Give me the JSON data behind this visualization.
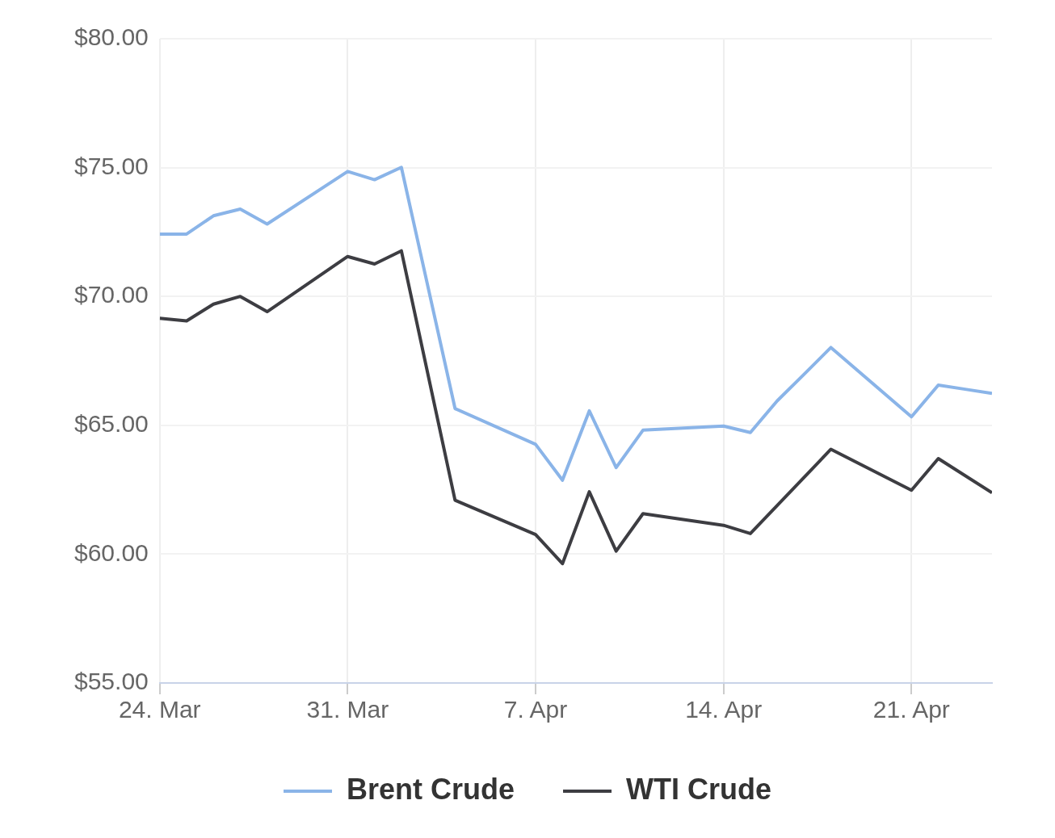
{
  "chart_data": {
    "type": "line",
    "x": [
      "--03-24",
      "--03-25",
      "--03-26",
      "--03-27",
      "--03-28",
      "--03-31",
      "--04-01",
      "--04-02",
      "--04-04",
      "--04-07",
      "--04-08",
      "--04-09",
      "--04-10",
      "--04-11",
      "--04-14",
      "--04-15",
      "--04-16",
      "--04-17",
      "--04-18",
      "--04-21",
      "--04-22",
      "--04-23",
      "--04-24"
    ],
    "series": [
      {
        "name": "Brent Crude",
        "color": "#8ab4e8",
        "values": [
          72.42,
          72.42,
          73.13,
          73.39,
          72.81,
          74.85,
          74.53,
          75.01,
          65.65,
          64.26,
          62.87,
          65.56,
          63.36,
          64.81,
          64.97,
          64.72,
          65.95,
          66.98,
          68.02,
          65.33,
          66.56,
          66.4,
          66.24
        ]
      },
      {
        "name": "WTI Crude",
        "color": "#3d3d42",
        "values": [
          69.15,
          69.05,
          69.7,
          70.0,
          69.41,
          71.55,
          71.26,
          71.77,
          62.09,
          60.76,
          59.63,
          62.42,
          60.12,
          61.57,
          61.12,
          60.8,
          null,
          null,
          64.07,
          62.48,
          63.71,
          null,
          62.38
        ]
      }
    ],
    "xlim": [
      "--03-24",
      "--04-24"
    ],
    "xticks": [
      {
        "value": "--03-24",
        "label": "24. Mar"
      },
      {
        "value": "--03-31",
        "label": "31. Mar"
      },
      {
        "value": "--04-07",
        "label": "7. Apr"
      },
      {
        "value": "--04-14",
        "label": "14. Apr"
      },
      {
        "value": "--04-21",
        "label": "21. Apr"
      }
    ],
    "ylim": [
      55,
      80
    ],
    "yticks": [
      {
        "value": 55,
        "label": "$55.00"
      },
      {
        "value": 60,
        "label": "$60.00"
      },
      {
        "value": 65,
        "label": "$65.00"
      },
      {
        "value": 70,
        "label": "$70.00"
      },
      {
        "value": 75,
        "label": "$75.00"
      },
      {
        "value": 80,
        "label": "$80.00"
      }
    ],
    "grid": true,
    "legend": "bottom",
    "marker": "none",
    "line_style": "solid"
  }
}
